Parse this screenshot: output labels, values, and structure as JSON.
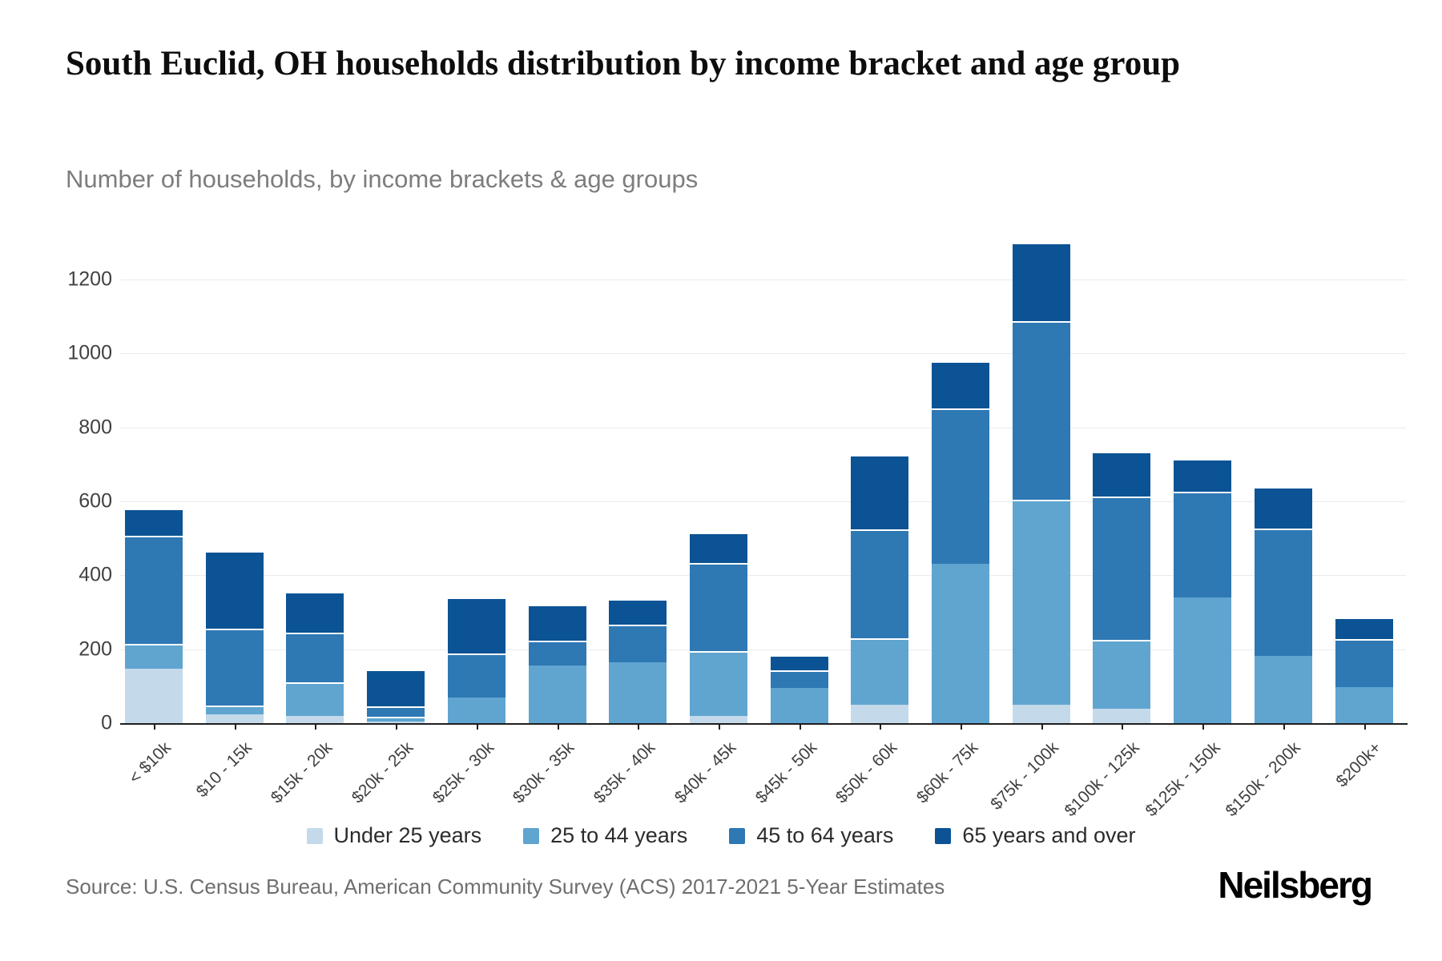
{
  "header": {
    "title": "South Euclid, OH households distribution by income bracket and age group",
    "subtitle": "Number of households, by income brackets & age groups"
  },
  "chart_data": {
    "type": "bar",
    "stacked": true,
    "title": "South Euclid, OH households distribution by income bracket and age group",
    "xlabel": "",
    "ylabel": "Number of households",
    "ylim": [
      0,
      1300
    ],
    "y_ticks": [
      0,
      200,
      400,
      600,
      800,
      1000,
      1200
    ],
    "grid": true,
    "legend_position": "bottom",
    "categories": [
      "< $10k",
      "$10 - 15k",
      "$15k - 20k",
      "$20k - 25k",
      "$25k - 30k",
      "$30k - 35k",
      "$35k - 40k",
      "$40k - 45k",
      "$45k - 50k",
      "$50k - 60k",
      "$60k - 75k",
      "$75k - 100k",
      "$100k - 125k",
      "$125k - 150k",
      "$150k - 200k",
      "$200k+"
    ],
    "series": [
      {
        "name": "Under 25 years",
        "color": "#c4daeb",
        "values": [
          150,
          25,
          20,
          5,
          0,
          0,
          0,
          20,
          0,
          50,
          0,
          50,
          40,
          0,
          0,
          0
        ]
      },
      {
        "name": "25 to 44 years",
        "color": "#5fa5d0",
        "values": [
          65,
          20,
          90,
          10,
          70,
          160,
          170,
          175,
          100,
          180,
          435,
          555,
          185,
          345,
          185,
          100
        ]
      },
      {
        "name": "45 to 64 years",
        "color": "#2e78b4",
        "values": [
          295,
          210,
          135,
          25,
          120,
          65,
          100,
          240,
          45,
          295,
          420,
          485,
          390,
          285,
          345,
          130
        ]
      },
      {
        "name": "65 years and over",
        "color": "#0b5394",
        "values": [
          70,
          210,
          110,
          105,
          150,
          95,
          65,
          80,
          40,
          200,
          125,
          210,
          120,
          85,
          110,
          55
        ]
      }
    ]
  },
  "footer": {
    "source": "Source: U.S. Census Bureau, American Community Survey (ACS) 2017-2021 5-Year Estimates",
    "logo": "Neilsberg"
  }
}
